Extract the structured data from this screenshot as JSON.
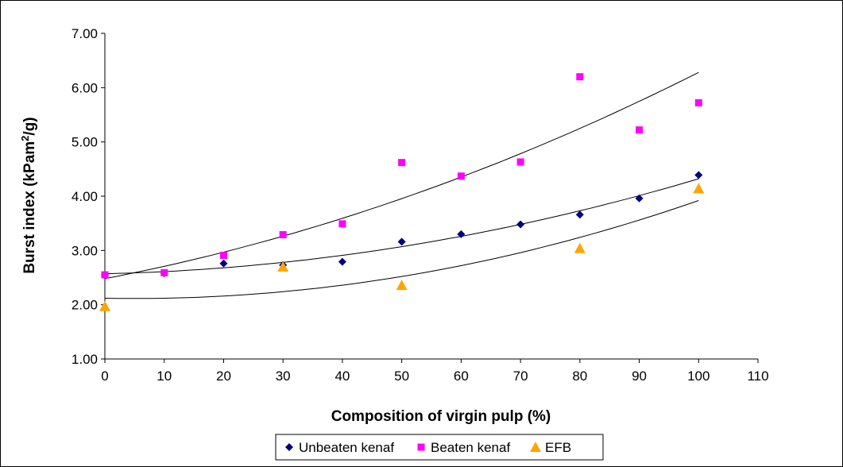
{
  "chart_data": {
    "type": "scatter",
    "title": "",
    "xlabel": "Composition of virgin pulp (%)",
    "ylabel": "Burst index (kPam²/g)",
    "ylabel_parts": {
      "before": "Burst index (kPam",
      "sup": "2",
      "after": "/g)"
    },
    "xlim": [
      0,
      110
    ],
    "ylim": [
      1.0,
      7.0
    ],
    "x_ticks": [
      0,
      10,
      20,
      30,
      40,
      50,
      60,
      70,
      80,
      90,
      100,
      110
    ],
    "x_tick_labels": [
      "0",
      "10",
      "20",
      "30",
      "40",
      "50",
      "60",
      "70",
      "80",
      "90",
      "100",
      "110"
    ],
    "y_ticks": [
      1,
      2,
      3,
      4,
      5,
      6,
      7
    ],
    "y_tick_labels": [
      "1.00",
      "2.00",
      "3.00",
      "4.00",
      "5.00",
      "6.00",
      "7.00"
    ],
    "grid": false,
    "legend_position": "bottom",
    "series": [
      {
        "name": "Unbeaten kenaf",
        "marker": "diamond",
        "color": "#000080",
        "x": [
          0,
          10,
          20,
          30,
          40,
          50,
          60,
          70,
          80,
          90,
          100
        ],
        "y": [
          2.55,
          2.58,
          2.76,
          2.73,
          2.79,
          3.16,
          3.3,
          3.48,
          3.66,
          3.96,
          4.39
        ],
        "trendline": {
          "type": "polynomial",
          "coef": [
            2.57,
            0.0025,
            0.00015
          ]
        }
      },
      {
        "name": "Beaten kenaf",
        "marker": "square",
        "color": "#ff00ff",
        "x": [
          0,
          10,
          20,
          30,
          40,
          50,
          60,
          70,
          80,
          90,
          100
        ],
        "y": [
          2.55,
          2.59,
          2.91,
          3.29,
          3.49,
          4.62,
          4.37,
          4.63,
          6.2,
          5.22,
          5.72
        ],
        "trendline": {
          "type": "polynomial",
          "coef": [
            2.48,
            0.021,
            0.00017
          ]
        }
      },
      {
        "name": "EFB",
        "marker": "triangle",
        "color": "#ffa500",
        "x": [
          0,
          30,
          50,
          80,
          100
        ],
        "y": [
          1.97,
          2.7,
          2.36,
          3.04,
          4.14
        ],
        "trendline": {
          "type": "polynomial",
          "coef": [
            2.12,
            -0.002,
            0.0002
          ]
        }
      }
    ]
  }
}
